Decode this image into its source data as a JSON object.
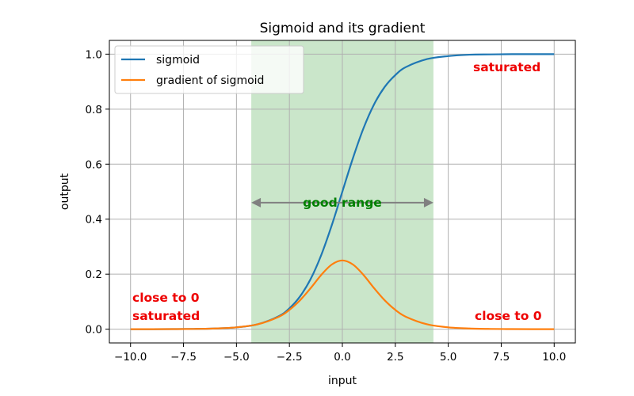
{
  "chart_data": {
    "type": "line",
    "title": "Sigmoid and its gradient",
    "xlabel": "input",
    "ylabel": "output",
    "xlim": [
      -11,
      11
    ],
    "ylim": [
      -0.05,
      1.05
    ],
    "grid": true,
    "x_ticks": [
      "−10.0",
      "−7.5",
      "−5.0",
      "−2.5",
      "0.0",
      "2.5",
      "5.0",
      "7.5",
      "10.0"
    ],
    "x_tick_values": [
      -10,
      -7.5,
      -5,
      -2.5,
      0,
      2.5,
      5,
      7.5,
      10
    ],
    "y_ticks": [
      "0.0",
      "0.2",
      "0.4",
      "0.6",
      "0.8",
      "1.0"
    ],
    "y_tick_values": [
      0,
      0.2,
      0.4,
      0.6,
      0.8,
      1.0
    ],
    "legend_position": "top-left",
    "series": [
      {
        "name": "sigmoid",
        "color": "#1f77b4",
        "x": [
          -10,
          -9,
          -8,
          -7,
          -6,
          -5,
          -4,
          -3,
          -2.5,
          -2,
          -1.5,
          -1,
          -0.5,
          0,
          0.5,
          1,
          1.5,
          2,
          2.5,
          3,
          4,
          5,
          6,
          7,
          8,
          9,
          10
        ],
        "y": [
          4.54e-05,
          0.000123,
          0.000335,
          0.000911,
          0.00247,
          0.00669,
          0.018,
          0.0474,
          0.0759,
          0.119,
          0.182,
          0.269,
          0.378,
          0.5,
          0.622,
          0.731,
          0.818,
          0.881,
          0.924,
          0.953,
          0.982,
          0.993,
          0.998,
          0.999,
          1.0,
          1.0,
          1.0
        ]
      },
      {
        "name": "gradient of sigmoid",
        "color": "#ff7f0e",
        "x": [
          -10,
          -9,
          -8,
          -7,
          -6,
          -5,
          -4,
          -3,
          -2.5,
          -2,
          -1.5,
          -1,
          -0.5,
          0,
          0.5,
          1,
          1.5,
          2,
          2.5,
          3,
          4,
          5,
          6,
          7,
          8,
          9,
          10
        ],
        "y": [
          4.54e-05,
          0.000123,
          0.000335,
          0.00091,
          0.00247,
          0.00665,
          0.0177,
          0.0452,
          0.0701,
          0.105,
          0.149,
          0.197,
          0.235,
          0.25,
          0.235,
          0.197,
          0.149,
          0.105,
          0.0701,
          0.0452,
          0.0177,
          0.00665,
          0.00247,
          0.00091,
          0.000335,
          0.000123,
          4.54e-05
        ]
      }
    ],
    "shaded_region": {
      "x_start": -4.3,
      "x_end": 4.3,
      "color": "#9fd19f"
    },
    "range_arrow": {
      "x_start": -4.3,
      "x_end": 4.3,
      "y": 0.46,
      "color": "#808080"
    },
    "annotations": [
      {
        "id": "good-range",
        "text": "good range",
        "color": "green"
      },
      {
        "id": "saturated-top",
        "text": "saturated",
        "color": "red"
      },
      {
        "id": "close-to-0-left",
        "text": "close to 0",
        "color": "red"
      },
      {
        "id": "saturated-left",
        "text": "saturated",
        "color": "red"
      },
      {
        "id": "close-to-0-right",
        "text": "close to 0",
        "color": "red"
      }
    ]
  }
}
